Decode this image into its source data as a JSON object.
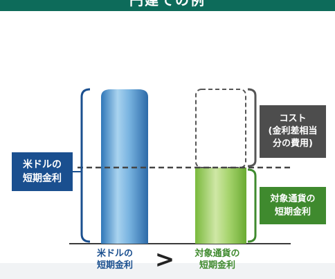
{
  "header": {
    "title": "円建ての例"
  },
  "usd_rate_label": [
    "米ドルの",
    "短期金利"
  ],
  "cost_label": [
    "コスト",
    "(金利差相当",
    "分の費用)"
  ],
  "target_rate_label": [
    "対象通貨の",
    "短期金利"
  ],
  "bottom": {
    "left_label": [
      "米ドルの",
      "短期金利"
    ],
    "comparison": ">",
    "right_label": [
      "対象通貨の",
      "短期金利"
    ]
  },
  "colors": {
    "usd_blue": "#1a4f8f",
    "cost_gray": "#4d4d4d",
    "target_green": "#3f8a2e",
    "header_teal": "#0d6b5a"
  }
}
